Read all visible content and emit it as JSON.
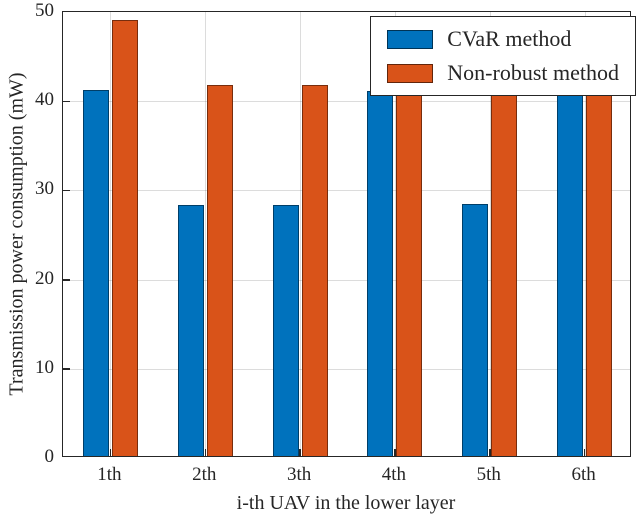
{
  "chart_data": {
    "type": "bar",
    "title": "",
    "xlabel": "i-th UAV in the lower layer",
    "ylabel": "Transmission power consumption (mW)",
    "categories": [
      "1th",
      "2th",
      "3th",
      "4th",
      "5th",
      "6th"
    ],
    "series": [
      {
        "name": "CVaR method",
        "color": "#0072BD",
        "values": [
          41.0,
          28.1,
          28.1,
          40.9,
          28.3,
          40.9
        ]
      },
      {
        "name": "Non-robust method",
        "color": "#D95319",
        "values": [
          48.9,
          41.6,
          41.6,
          48.8,
          40.8,
          48.8
        ]
      }
    ],
    "ylim": [
      0,
      50
    ],
    "yticks": [
      0,
      10,
      20,
      30,
      40,
      50
    ],
    "grid": true,
    "legend_position": "northeast",
    "axis_color": "#262626",
    "grid_color": "rgba(38,38,38,0.16)"
  }
}
